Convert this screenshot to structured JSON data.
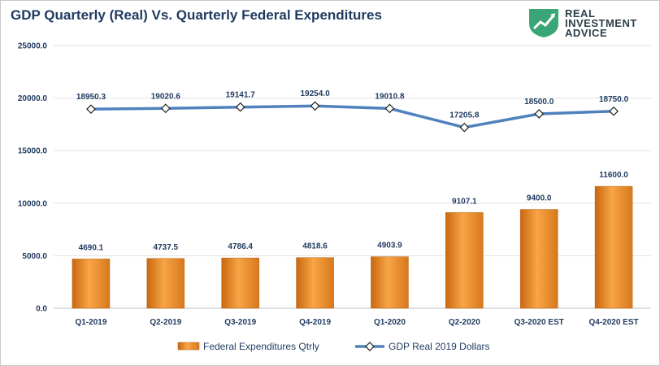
{
  "chart_data": {
    "type": "bar",
    "title": "GDP Quarterly (Real) Vs. Quarterly Federal Expenditures",
    "categories": [
      "Q1-2019",
      "Q2-2019",
      "Q3-2019",
      "Q4-2019",
      "Q1-2020",
      "Q2-2020",
      "Q3-2020 EST",
      "Q4-2020 EST"
    ],
    "series": [
      {
        "name": "Federal Expenditures Qtrly",
        "type": "bar",
        "values": [
          4690.1,
          4737.5,
          4786.4,
          4818.6,
          4903.9,
          9107.1,
          9400.0,
          11600.0
        ],
        "labels": [
          "4690.1",
          "4737.5",
          "4786.4",
          "4818.6",
          "4903.9",
          "9107.1",
          "9400.0",
          "11600.0"
        ],
        "color": "#f0922b"
      },
      {
        "name": "GDP Real 2019 Dollars",
        "type": "line",
        "values": [
          18950.3,
          19020.6,
          19141.7,
          19254.0,
          19010.8,
          17205.8,
          18500.0,
          18750.0
        ],
        "labels": [
          "18950.3",
          "19020.6",
          "19141.7",
          "19254.0",
          "19010.8",
          "17205.8",
          "18500.0",
          "18750.0"
        ],
        "color": "#4f81bd"
      }
    ],
    "ylim": [
      0,
      25000
    ],
    "yticks": [
      0,
      5000,
      10000,
      15000,
      20000,
      25000
    ],
    "ytick_labels": [
      "0.0",
      "5000.0",
      "10000.0",
      "15000.0",
      "20000.0",
      "25000.0"
    ],
    "grid": true,
    "legend_position": "bottom"
  },
  "logo": {
    "line1": "REAL",
    "line2": "INVESTMENT",
    "line3": "ADVICE",
    "color": "#3aa576"
  }
}
